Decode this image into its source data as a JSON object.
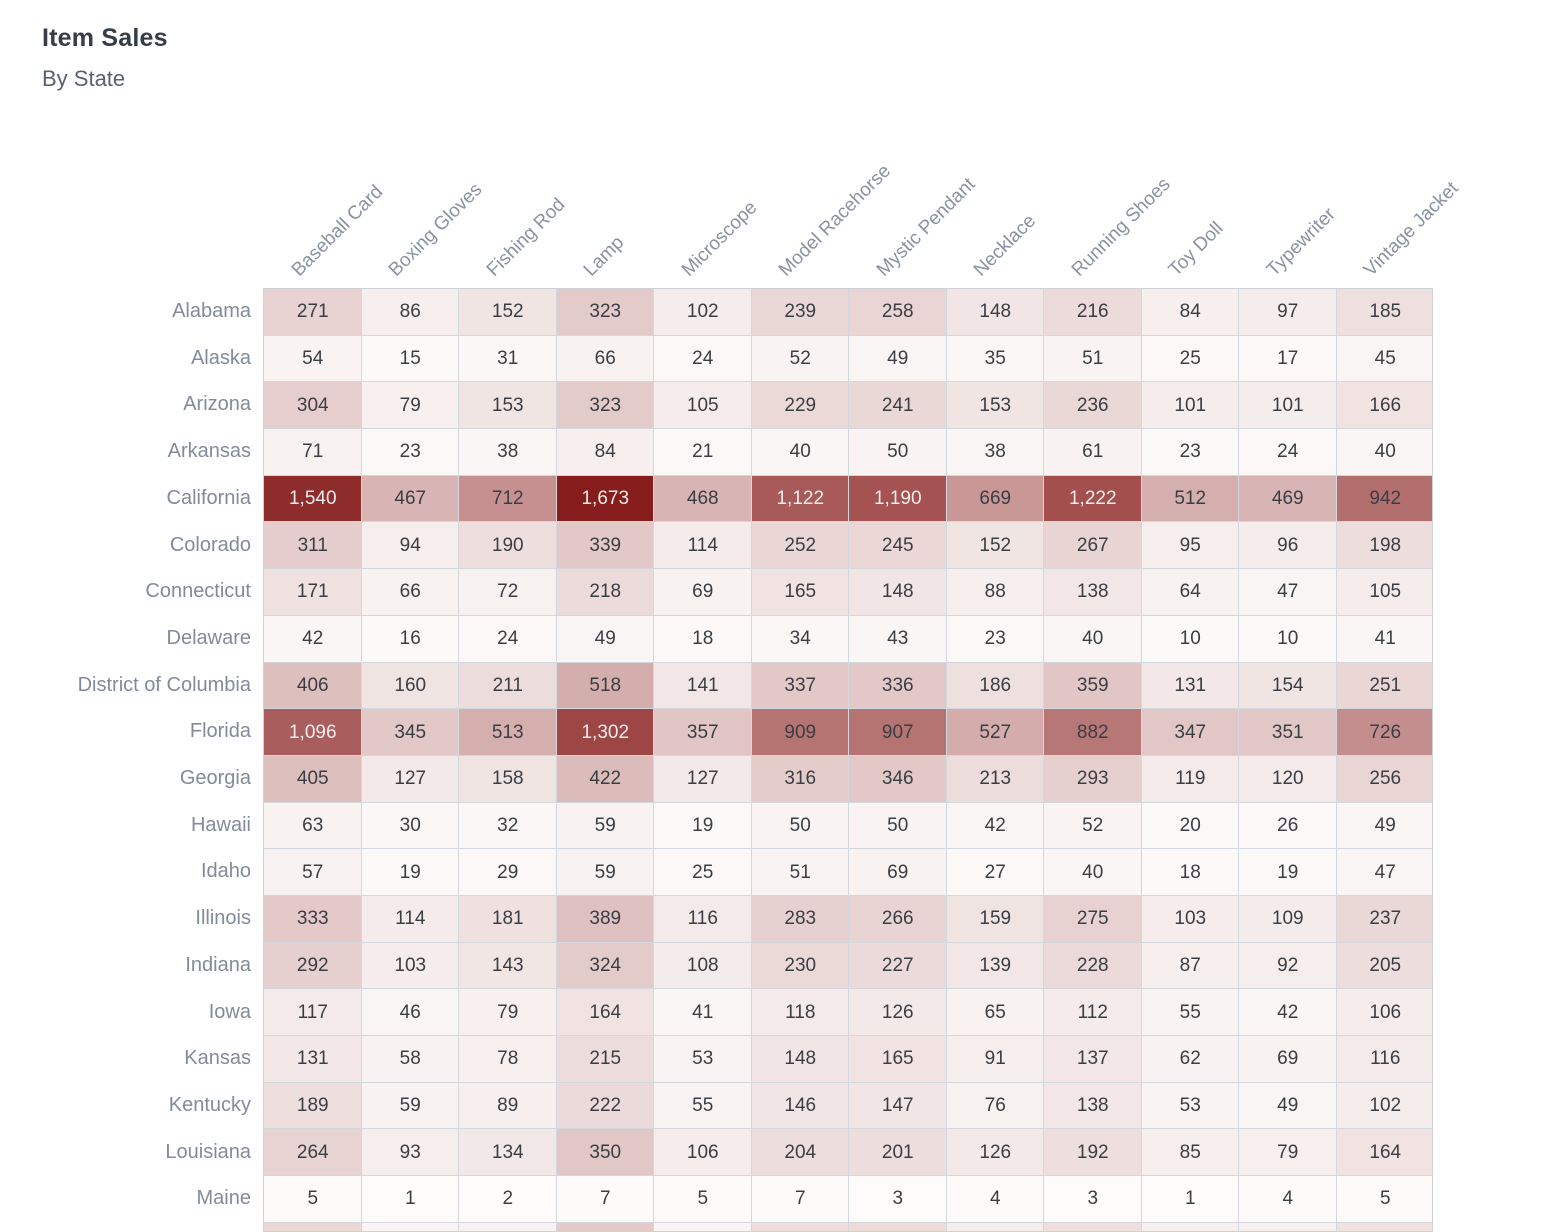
{
  "header": {
    "title": "Item Sales",
    "subtitle": "By State"
  },
  "chart_data": {
    "type": "heatmap",
    "title": "Item Sales",
    "subtitle": "By State",
    "columns": [
      "Baseball Card",
      "Boxing Gloves",
      "Fishing Rod",
      "Lamp",
      "Microscope",
      "Model Racehorse",
      "Mystic Pendant",
      "Necklace",
      "Running Shoes",
      "Toy Doll",
      "Typewriter",
      "Vintage Jacket"
    ],
    "rows": [
      {
        "state": "Alabama",
        "values": [
          271,
          86,
          152,
          323,
          102,
          239,
          258,
          148,
          216,
          84,
          97,
          185
        ]
      },
      {
        "state": "Alaska",
        "values": [
          54,
          15,
          31,
          66,
          24,
          52,
          49,
          35,
          51,
          25,
          17,
          45
        ]
      },
      {
        "state": "Arizona",
        "values": [
          304,
          79,
          153,
          323,
          105,
          229,
          241,
          153,
          236,
          101,
          101,
          166
        ]
      },
      {
        "state": "Arkansas",
        "values": [
          71,
          23,
          38,
          84,
          21,
          40,
          50,
          38,
          61,
          23,
          24,
          40
        ]
      },
      {
        "state": "California",
        "values": [
          1540,
          467,
          712,
          1673,
          468,
          1122,
          1190,
          669,
          1222,
          512,
          469,
          942
        ]
      },
      {
        "state": "Colorado",
        "values": [
          311,
          94,
          190,
          339,
          114,
          252,
          245,
          152,
          267,
          95,
          96,
          198
        ]
      },
      {
        "state": "Connecticut",
        "values": [
          171,
          66,
          72,
          218,
          69,
          165,
          148,
          88,
          138,
          64,
          47,
          105
        ]
      },
      {
        "state": "Delaware",
        "values": [
          42,
          16,
          24,
          49,
          18,
          34,
          43,
          23,
          40,
          10,
          10,
          41
        ]
      },
      {
        "state": "District of Columbia",
        "values": [
          406,
          160,
          211,
          518,
          141,
          337,
          336,
          186,
          359,
          131,
          154,
          251
        ]
      },
      {
        "state": "Florida",
        "values": [
          1096,
          345,
          513,
          1302,
          357,
          909,
          907,
          527,
          882,
          347,
          351,
          726
        ]
      },
      {
        "state": "Georgia",
        "values": [
          405,
          127,
          158,
          422,
          127,
          316,
          346,
          213,
          293,
          119,
          120,
          256
        ]
      },
      {
        "state": "Hawaii",
        "values": [
          63,
          30,
          32,
          59,
          19,
          50,
          50,
          42,
          52,
          20,
          26,
          49
        ]
      },
      {
        "state": "Idaho",
        "values": [
          57,
          19,
          29,
          59,
          25,
          51,
          69,
          27,
          40,
          18,
          19,
          47
        ]
      },
      {
        "state": "Illinois",
        "values": [
          333,
          114,
          181,
          389,
          116,
          283,
          266,
          159,
          275,
          103,
          109,
          237
        ]
      },
      {
        "state": "Indiana",
        "values": [
          292,
          103,
          143,
          324,
          108,
          230,
          227,
          139,
          228,
          87,
          92,
          205
        ]
      },
      {
        "state": "Iowa",
        "values": [
          117,
          46,
          79,
          164,
          41,
          118,
          126,
          65,
          112,
          55,
          42,
          106
        ]
      },
      {
        "state": "Kansas",
        "values": [
          131,
          58,
          78,
          215,
          53,
          148,
          165,
          91,
          137,
          62,
          69,
          116
        ]
      },
      {
        "state": "Kentucky",
        "values": [
          189,
          59,
          89,
          222,
          55,
          146,
          147,
          76,
          138,
          53,
          49,
          102
        ]
      },
      {
        "state": "Louisiana",
        "values": [
          264,
          93,
          134,
          350,
          106,
          204,
          201,
          126,
          192,
          85,
          79,
          164
        ]
      },
      {
        "state": "Maine",
        "values": [
          5,
          1,
          2,
          7,
          5,
          7,
          3,
          4,
          3,
          1,
          4,
          5
        ]
      }
    ],
    "value_range": [
      0,
      1673
    ],
    "grid": true,
    "legend_position": "none",
    "palette": {
      "low": "#fdfcfb",
      "mid": "#b47170",
      "mid_position": 0.55,
      "high": "#861c1c"
    },
    "text_colors": {
      "dark": "#3a3e44",
      "light": "#f3eded",
      "light_threshold": 1000
    },
    "partial_next_row_colors": [
      "#ecd9d6",
      "#faf5f4",
      "#f8f3f2",
      "#e4cbc8",
      "#faf5f4",
      "#efdedb",
      "#eedcd9",
      "#f6eeec",
      "#f0e0dd",
      "#f8f0ef",
      "#f8f1f0",
      "#f0e2df"
    ]
  }
}
